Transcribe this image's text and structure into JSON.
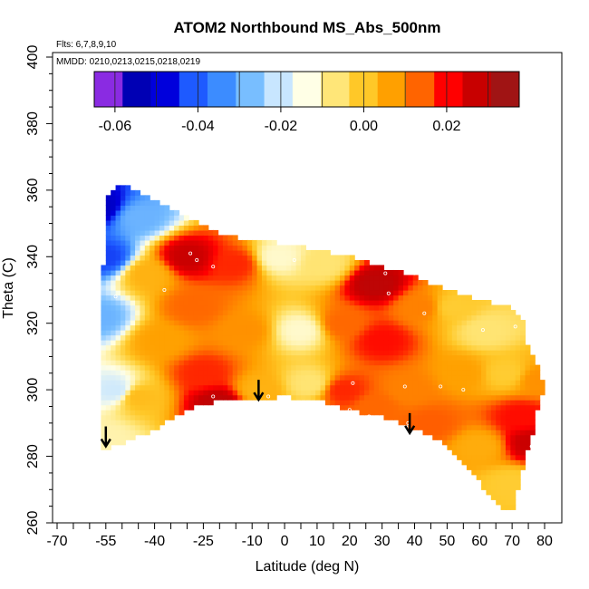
{
  "chart_data": {
    "type": "heatmap",
    "title": "ATOM2 Northbound MS_Abs_500nm",
    "flights_note": "Flts: 6,7,8,9,10",
    "dates_note": "MMDD: 0210,0213,0215,0218,0219",
    "xlabel": "Latitude (deg N)",
    "ylabel": "Theta (C)",
    "xlim": [
      -70,
      83
    ],
    "ylim": [
      260,
      400
    ],
    "x_ticks": [
      -70,
      -55,
      -40,
      -25,
      -10,
      0,
      10,
      20,
      30,
      40,
      50,
      60,
      70,
      80
    ],
    "y_ticks": [
      260,
      280,
      300,
      320,
      340,
      360,
      380,
      400
    ],
    "colorbar": {
      "min": -0.065,
      "max": 0.0375,
      "ticks": [
        -0.06,
        -0.04,
        -0.02,
        0.0,
        0.02
      ],
      "tick_labels": [
        "-0.06",
        "-0.04",
        "-0.02",
        "0.00",
        "0.02"
      ],
      "colors": [
        "#8a2be2",
        "#0000b4",
        "#0000dc",
        "#1e5aff",
        "#3c8cff",
        "#78beff",
        "#c8e6ff",
        "#ffffe6",
        "#ffe678",
        "#ffc828",
        "#ffa000",
        "#ff6400",
        "#ff0000",
        "#c80000",
        "#a01414"
      ]
    },
    "field_hull": {
      "lat": [
        -57,
        -57,
        -56,
        -55,
        -50,
        -45,
        -40,
        -30,
        -20,
        -10,
        0,
        10,
        20,
        30,
        40,
        50,
        60,
        70,
        74,
        74,
        77,
        79,
        80,
        78,
        77,
        75,
        73,
        71,
        70,
        66,
        55,
        48,
        40,
        30,
        20,
        10,
        0,
        -10,
        -20,
        -30,
        -40,
        -50,
        -55,
        -57
      ],
      "theta": [
        282,
        298,
        330,
        358,
        362,
        360,
        357,
        352,
        347,
        345,
        344,
        342,
        340,
        337,
        334,
        330,
        327,
        325,
        320,
        315,
        310,
        304,
        300,
        295,
        289,
        283,
        275,
        268,
        263,
        265,
        278,
        285,
        288,
        292,
        294,
        297,
        298,
        297,
        297,
        294,
        288,
        284,
        282,
        282
      ]
    },
    "field_anchors": [
      {
        "lat": -57,
        "theta": 355,
        "value": -0.055
      },
      {
        "lat": -55,
        "theta": 340,
        "value": -0.045
      },
      {
        "lat": -57,
        "theta": 322,
        "value": -0.03
      },
      {
        "lat": -52,
        "theta": 300,
        "value": -0.02
      },
      {
        "lat": -55,
        "theta": 285,
        "value": -0.01
      },
      {
        "lat": -45,
        "theta": 352,
        "value": -0.03
      },
      {
        "lat": -42,
        "theta": 335,
        "value": 0.005
      },
      {
        "lat": -38,
        "theta": 315,
        "value": 0.008
      },
      {
        "lat": -45,
        "theta": 298,
        "value": 0.003
      },
      {
        "lat": -30,
        "theta": 340,
        "value": 0.03
      },
      {
        "lat": -28,
        "theta": 325,
        "value": 0.015
      },
      {
        "lat": -25,
        "theta": 305,
        "value": 0.02
      },
      {
        "lat": -20,
        "theta": 296,
        "value": 0.032
      },
      {
        "lat": -15,
        "theta": 338,
        "value": 0.02
      },
      {
        "lat": -12,
        "theta": 318,
        "value": 0.01
      },
      {
        "lat": -8,
        "theta": 300,
        "value": 0.005
      },
      {
        "lat": -2,
        "theta": 340,
        "value": -0.012
      },
      {
        "lat": 5,
        "theta": 318,
        "value": -0.012
      },
      {
        "lat": 8,
        "theta": 302,
        "value": -0.006
      },
      {
        "lat": 12,
        "theta": 338,
        "value": -0.006
      },
      {
        "lat": 18,
        "theta": 320,
        "value": 0.015
      },
      {
        "lat": 18,
        "theta": 300,
        "value": 0.02
      },
      {
        "lat": 28,
        "theta": 332,
        "value": 0.032
      },
      {
        "lat": 30,
        "theta": 315,
        "value": 0.022
      },
      {
        "lat": 28,
        "theta": 295,
        "value": 0.015
      },
      {
        "lat": 38,
        "theta": 300,
        "value": 0.012
      },
      {
        "lat": 42,
        "theta": 325,
        "value": 0.012
      },
      {
        "lat": 45,
        "theta": 290,
        "value": 0.016
      },
      {
        "lat": 52,
        "theta": 325,
        "value": 0.0
      },
      {
        "lat": 55,
        "theta": 305,
        "value": 0.008
      },
      {
        "lat": 62,
        "theta": 318,
        "value": -0.006
      },
      {
        "lat": 68,
        "theta": 305,
        "value": 0.0
      },
      {
        "lat": 73,
        "theta": 292,
        "value": 0.022
      },
      {
        "lat": 76,
        "theta": 284,
        "value": 0.03
      },
      {
        "lat": 70,
        "theta": 272,
        "value": 0.0
      },
      {
        "lat": 60,
        "theta": 283,
        "value": 0.006
      },
      {
        "lat": 78,
        "theta": 303,
        "value": 0.01
      }
    ],
    "sample_points": [
      {
        "lat": -52,
        "theta": 328
      },
      {
        "lat": -37,
        "theta": 330
      },
      {
        "lat": -29,
        "theta": 341
      },
      {
        "lat": -27,
        "theta": 339
      },
      {
        "lat": -22,
        "theta": 337
      },
      {
        "lat": -22,
        "theta": 298
      },
      {
        "lat": -5,
        "theta": 298
      },
      {
        "lat": 3,
        "theta": 339
      },
      {
        "lat": 10,
        "theta": 343
      },
      {
        "lat": 20,
        "theta": 294
      },
      {
        "lat": 21,
        "theta": 302
      },
      {
        "lat": 26,
        "theta": 292
      },
      {
        "lat": 31,
        "theta": 335
      },
      {
        "lat": 32,
        "theta": 329
      },
      {
        "lat": 37,
        "theta": 301
      },
      {
        "lat": 38,
        "theta": 290
      },
      {
        "lat": 40,
        "theta": 335
      },
      {
        "lat": 43,
        "theta": 323
      },
      {
        "lat": 48,
        "theta": 301
      },
      {
        "lat": 55,
        "theta": 300
      },
      {
        "lat": 61,
        "theta": 318
      },
      {
        "lat": 71,
        "theta": 319
      },
      {
        "lat": 76,
        "theta": 283
      }
    ],
    "tropopause_arrows": [
      {
        "lat": -55,
        "theta": 283
      },
      {
        "lat": -8,
        "theta": 297
      },
      {
        "lat": 38.5,
        "theta": 287
      }
    ]
  }
}
